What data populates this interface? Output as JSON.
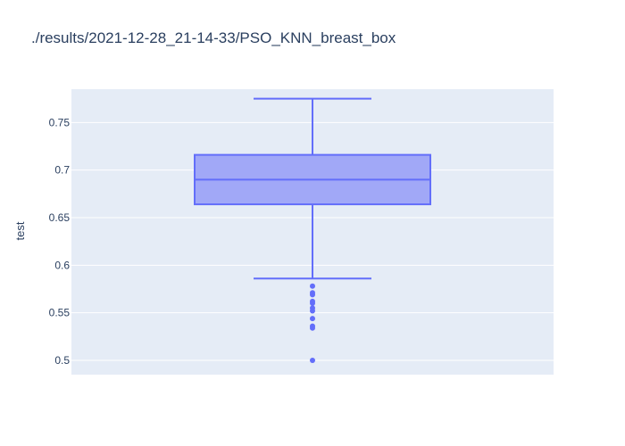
{
  "chart_data": {
    "type": "box",
    "title": "./results/2021-12-28_21-14-33/PSO_KNN_breast_box",
    "ylabel": "test",
    "xlabel": "",
    "ylim": [
      0.485,
      0.785
    ],
    "yticks": [
      0.5,
      0.55,
      0.6,
      0.65,
      0.7,
      0.75
    ],
    "ytick_labels": [
      "0.5",
      "0.55",
      "0.6",
      "0.65",
      "0.7",
      "0.75"
    ],
    "grid": true,
    "box": {
      "lower_fence": 0.586,
      "q1": 0.664,
      "median": 0.69,
      "q3": 0.716,
      "upper_fence": 0.775,
      "outliers": [
        0.578,
        0.571,
        0.569,
        0.562,
        0.56,
        0.555,
        0.552,
        0.544,
        0.536,
        0.534,
        0.5
      ]
    },
    "colors": {
      "plot_bg": "#e5ecf6",
      "grid": "#ffffff",
      "line": "#636efa",
      "fill": "#a1a8f7",
      "text": "#2a3f5f"
    }
  }
}
